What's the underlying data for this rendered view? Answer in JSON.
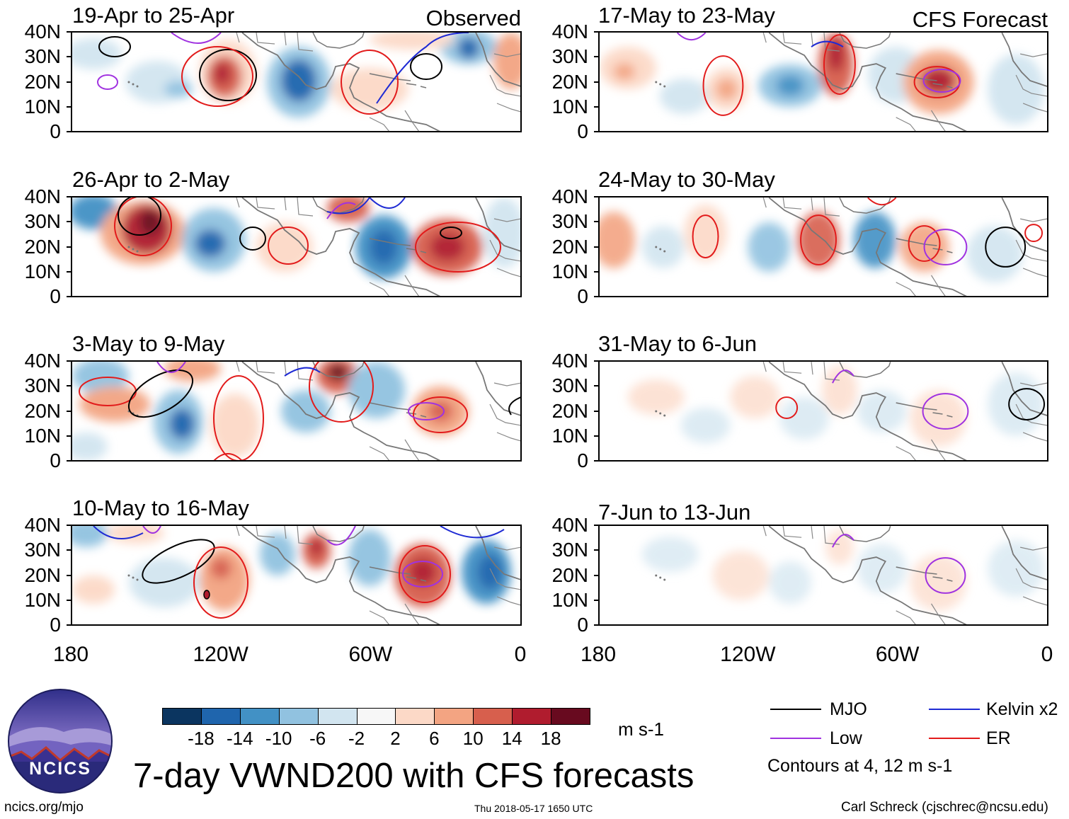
{
  "panels": [
    {
      "title": "19-Apr to 25-Apr",
      "tag": "Observed"
    },
    {
      "title": "17-May to 23-May",
      "tag": "CFS Forecast"
    },
    {
      "title": "26-Apr to 2-May",
      "tag": ""
    },
    {
      "title": "24-May to 30-May",
      "tag": ""
    },
    {
      "title": "3-May to 9-May",
      "tag": ""
    },
    {
      "title": "31-May to 6-Jun",
      "tag": ""
    },
    {
      "title": "10-May to 16-May",
      "tag": ""
    },
    {
      "title": "7-Jun to 13-Jun",
      "tag": ""
    }
  ],
  "lat_ticks": [
    "40N",
    "30N",
    "20N",
    "10N",
    "0"
  ],
  "lon_ticks": [
    "180",
    "120W",
    "60W",
    "0"
  ],
  "colorbar": {
    "colors": [
      "#0b3560",
      "#1f65ad",
      "#4291c5",
      "#91c2e0",
      "#d2e5f0",
      "#f7f7f7",
      "#fcd9c7",
      "#f3a482",
      "#d75f4d",
      "#b01c2e",
      "#680a1f"
    ],
    "labels": [
      "-18",
      "-14",
      "-10",
      "-6",
      "-2",
      "2",
      "6",
      "10",
      "14",
      "18"
    ],
    "units": "m s-1"
  },
  "legend": {
    "items": [
      {
        "label": "MJO",
        "color": "#000000"
      },
      {
        "label": "Kelvin x2",
        "color": "#1f2bd4"
      },
      {
        "label": "Low",
        "color": "#a032e0"
      },
      {
        "label": "ER",
        "color": "#e21b1b"
      }
    ],
    "note": "Contours at 4, 12 m s-1"
  },
  "logo_text": "NCICS",
  "main_title": "7-day VWND200 with CFS forecasts",
  "footer": {
    "left": "ncics.org/mjo",
    "center": "Thu 2018-05-17 1650 UTC",
    "right": "Carl Schreck (cjschrec@ncsu.edu)"
  }
}
